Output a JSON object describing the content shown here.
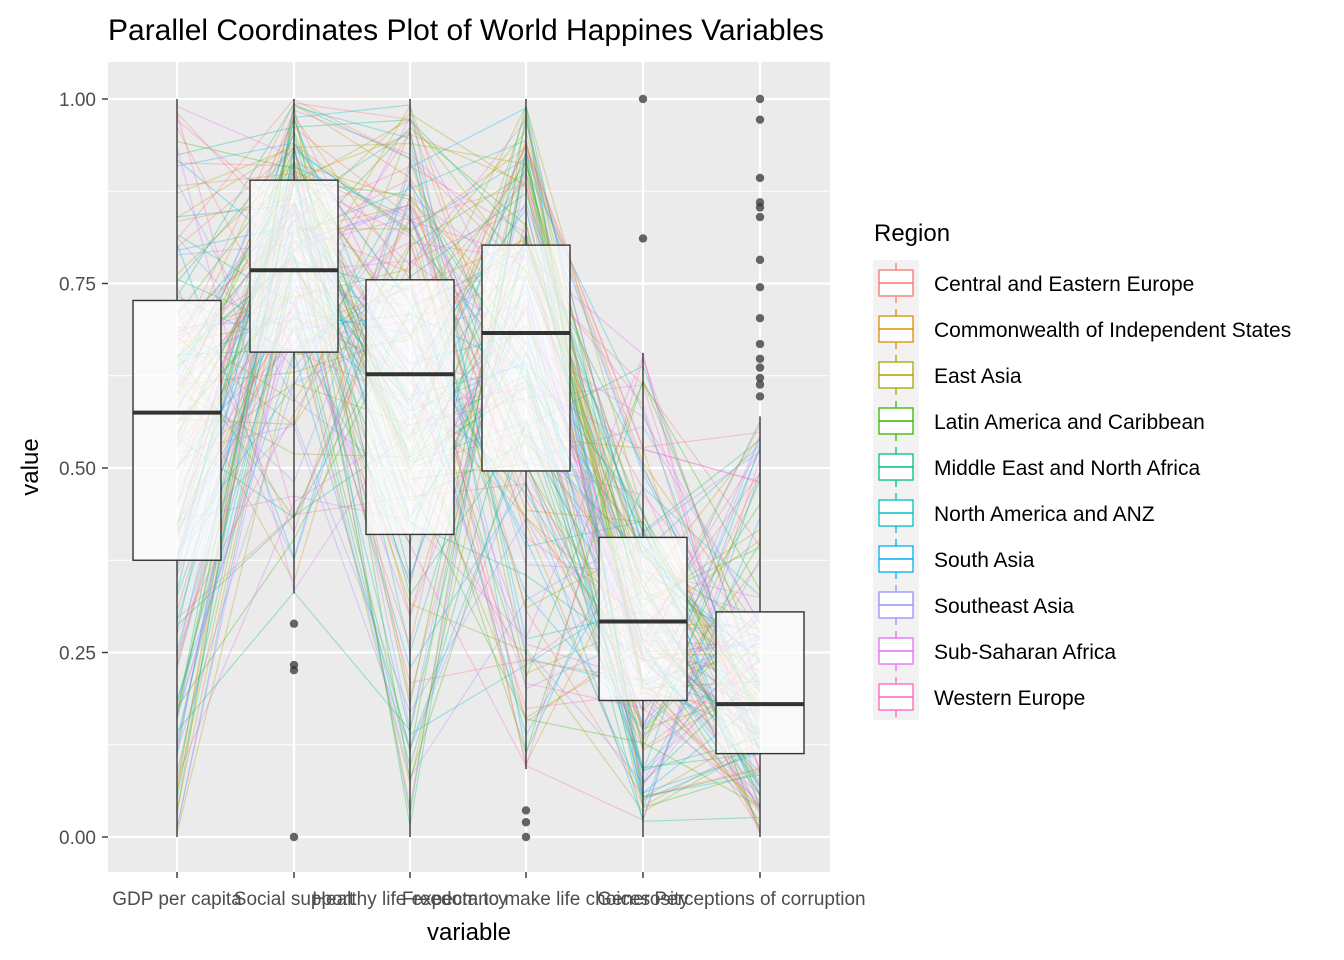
{
  "chart_data": {
    "type": "parallel-coordinates-boxplot",
    "title": "Parallel Coordinates Plot of World Happines Variables",
    "xlabel": "variable",
    "ylabel": "value",
    "ylim": [
      0,
      1
    ],
    "yticks": [
      "0.00",
      "0.25",
      "0.50",
      "0.75",
      "1.00"
    ],
    "ytick_values": [
      0,
      0.25,
      0.5,
      0.75,
      1.0
    ],
    "categories": [
      "GDP per capita",
      "Social support",
      "Healthy life expectancy",
      "Freedom to make life choices",
      "Generosity",
      "Perceptions of corruption"
    ],
    "boxes": [
      {
        "variable": "GDP per capita",
        "min": 0.0,
        "q1": 0.375,
        "median": 0.575,
        "q3": 0.727,
        "max": 1.0,
        "outliers": []
      },
      {
        "variable": "Social support",
        "min": 0.33,
        "q1": 0.657,
        "median": 0.768,
        "q3": 0.89,
        "max": 1.0,
        "outliers": [
          0.0,
          0.226,
          0.233,
          0.289
        ]
      },
      {
        "variable": "Healthy life expectancy",
        "min": 0.0,
        "q1": 0.41,
        "median": 0.627,
        "q3": 0.755,
        "max": 1.0,
        "outliers": []
      },
      {
        "variable": "Freedom to make life choices",
        "min": 0.092,
        "q1": 0.496,
        "median": 0.683,
        "q3": 0.802,
        "max": 1.0,
        "outliers": [
          0.0,
          0.02,
          0.036
        ]
      },
      {
        "variable": "Generosity",
        "min": 0.0,
        "q1": 0.185,
        "median": 0.292,
        "q3": 0.406,
        "max": 0.656,
        "outliers": [
          0.811,
          1.0
        ]
      },
      {
        "variable": "Perceptions of corruption",
        "min": 0.0,
        "q1": 0.113,
        "median": 0.18,
        "q3": 0.305,
        "max": 0.57,
        "outliers": [
          0.597,
          0.613,
          0.622,
          0.636,
          0.648,
          0.668,
          0.703,
          0.745,
          0.782,
          0.84,
          0.853,
          0.86,
          0.893,
          0.972,
          1.0
        ]
      }
    ],
    "legend": {
      "title": "Region",
      "placement": "right",
      "entries": [
        {
          "name": "Central and Eastern Europe",
          "color": "#F8766D"
        },
        {
          "name": "Commonwealth of Independent States",
          "color": "#D89000"
        },
        {
          "name": "East Asia",
          "color": "#A3A500"
        },
        {
          "name": "Latin America and Caribbean",
          "color": "#39B600"
        },
        {
          "name": "Middle East and North Africa",
          "color": "#00BF7D"
        },
        {
          "name": "North America and ANZ",
          "color": "#00BFC4"
        },
        {
          "name": "South Asia",
          "color": "#00B0F6"
        },
        {
          "name": "Southeast Asia",
          "color": "#9590FF"
        },
        {
          "name": "Sub-Saharan Africa",
          "color": "#E76BF3"
        },
        {
          "name": "Western Europe",
          "color": "#FF62BC"
        }
      ]
    },
    "grid": true,
    "panel_background": "#EBEBEB"
  }
}
